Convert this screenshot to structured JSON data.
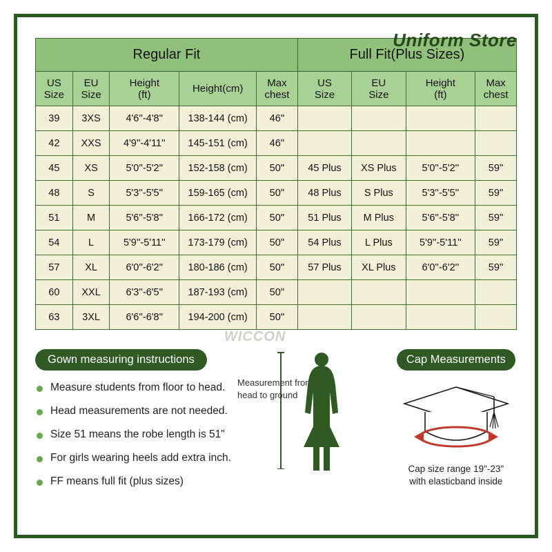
{
  "watermarks": {
    "top": "Uniform Store",
    "mid": "WICCON"
  },
  "table": {
    "groups": [
      {
        "label": "Regular Fit",
        "span": 5
      },
      {
        "label": "Full Fit(Plus Sizes)",
        "span": 4
      }
    ],
    "columns": [
      "US Size",
      "EU Size",
      "Height (ft)",
      "Height(cm)",
      "Max chest",
      "US Size",
      "EU Size",
      "Height (ft)",
      "Max chest"
    ],
    "rows": [
      [
        "39",
        "3XS",
        "4'6''-4'8''",
        "138-144 (cm)",
        "46''",
        "",
        "",
        "",
        ""
      ],
      [
        "42",
        "XXS",
        "4'9''-4'11''",
        "145-151 (cm)",
        "46''",
        "",
        "",
        "",
        ""
      ],
      [
        "45",
        "XS",
        "5'0''-5'2''",
        "152-158 (cm)",
        "50''",
        "45 Plus",
        "XS Plus",
        "5'0''-5'2''",
        "59''"
      ],
      [
        "48",
        "S",
        "5'3''-5'5''",
        "159-165 (cm)",
        "50''",
        "48 Plus",
        "S Plus",
        "5'3''-5'5''",
        "59''"
      ],
      [
        "51",
        "M",
        "5'6''-5'8''",
        "166-172 (cm)",
        "50''",
        "51 Plus",
        "M Plus",
        "5'6''-5'8''",
        "59''"
      ],
      [
        "54",
        "L",
        "5'9''-5'11''",
        "173-179 (cm)",
        "50''",
        "54 Plus",
        "L Plus",
        "5'9''-5'11''",
        "59''"
      ],
      [
        "57",
        "XL",
        "6'0''-6'2''",
        "180-186 (cm)",
        "50''",
        "57 Plus",
        "XL Plus",
        "6'0''-6'2''",
        "59''"
      ],
      [
        "60",
        "XXL",
        "6'3''-6'5''",
        "187-193 (cm)",
        "50''",
        "",
        "",
        "",
        ""
      ],
      [
        "63",
        "3XL",
        "6'6''-6'8''",
        "194-200 (cm)",
        "50''",
        "",
        "",
        "",
        ""
      ]
    ],
    "colors": {
      "group_bg": "#8fc17a",
      "col_bg": "#a8d294",
      "cell_bg": "#f3f0d8",
      "border": "#3b6b2e"
    }
  },
  "gown": {
    "pill": "Gown measuring instructions",
    "items": [
      "Measure students from floor to head.",
      "Head measurements are not needed.",
      "Size 51 means the robe length is 51\"",
      "For girls wearing heels add extra inch.",
      "FF means full fit (plus sizes)"
    ],
    "figure_label": "Measurement from head to ground"
  },
  "cap": {
    "pill": "Cap Measurements",
    "line1": "Cap size range 19\"-23\"",
    "line2": "with elasticband inside"
  },
  "colors": {
    "frame_border": "#2a5a1e",
    "pill_bg": "#2f5a24",
    "bullet": "#6aa84f",
    "silhouette": "#2f5a24",
    "arrow": "#c0392b"
  }
}
